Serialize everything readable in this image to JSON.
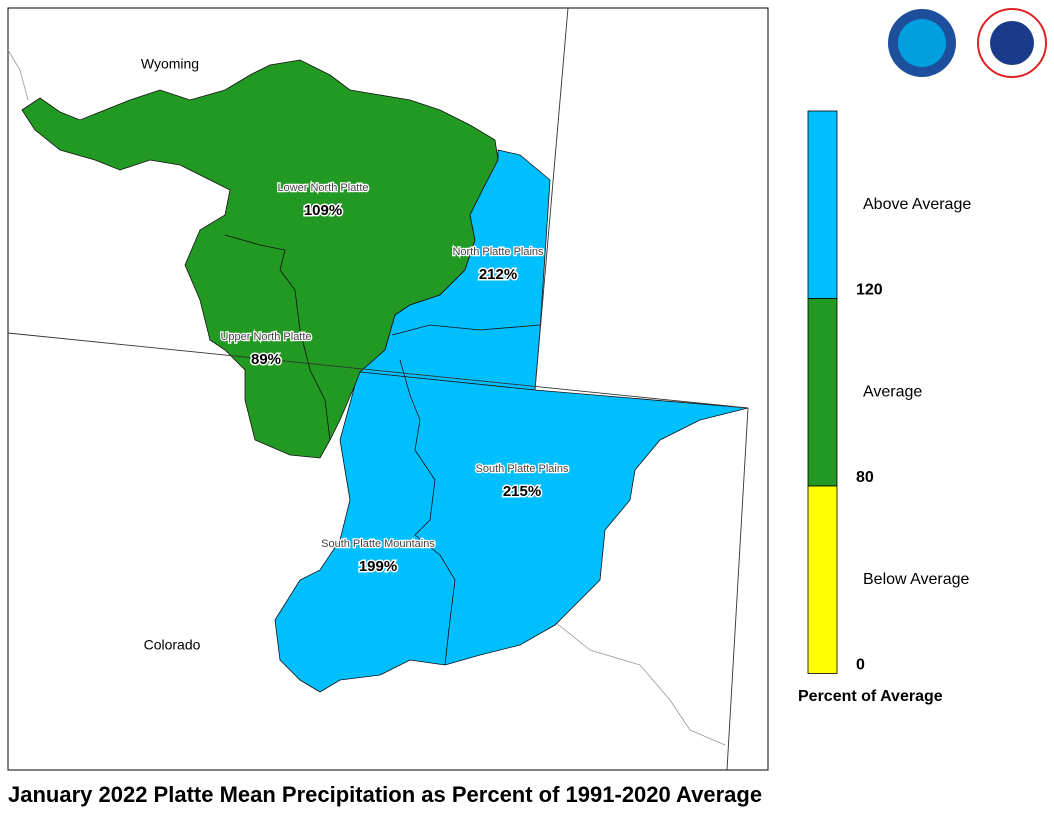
{
  "title": "January 2022 Platte Mean Precipitation as Percent of 1991-2020 Average",
  "states": [
    "Wyoming",
    "Colorado"
  ],
  "regions": [
    {
      "name": "Lower North Platte",
      "percent": "109%"
    },
    {
      "name": "North Platte Plains",
      "percent": "212%"
    },
    {
      "name": "Upper North Platte",
      "percent": "89%"
    },
    {
      "name": "South Platte Plains",
      "percent": "215%"
    },
    {
      "name": "South Platte Mountains",
      "percent": "199%"
    }
  ],
  "legend": {
    "title": "Percent of Average",
    "classes": [
      {
        "label": "Above Average",
        "color": "#00bfff"
      },
      {
        "label": "Average",
        "color": "#229922"
      },
      {
        "label": "Below Average",
        "color": "#ffff00"
      }
    ],
    "ticks": [
      "120",
      "80",
      "0"
    ]
  }
}
